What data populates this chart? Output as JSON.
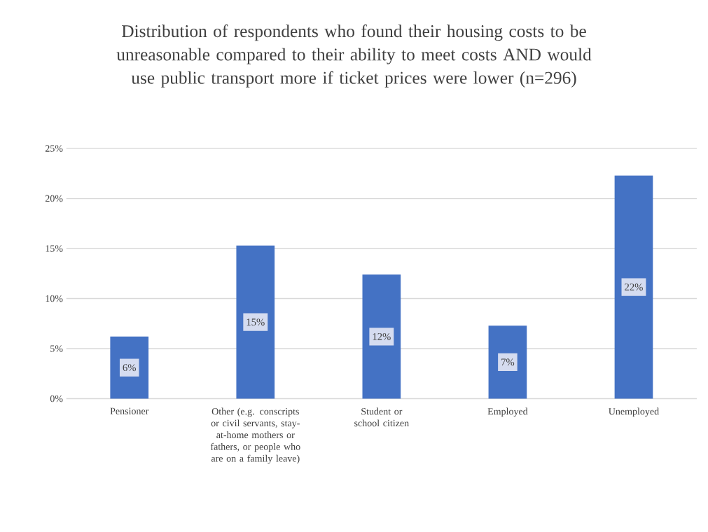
{
  "chart_data": {
    "type": "bar",
    "title": "Distribution of respondents who found their housing costs to be unreasonable compared to their ability to meet costs AND would use public transport more if ticket prices were lower (n=296)",
    "categories": [
      "Pensioner",
      "Other (e.g. conscripts or civil servants, stay-at-home mothers or fathers, or people who are on a family leave)",
      "Student or school citizen",
      "Employed",
      "Unemployed"
    ],
    "values": [
      6.2,
      15.3,
      12.4,
      7.3,
      22.3
    ],
    "value_labels": [
      "6%",
      "15%",
      "12%",
      "7%",
      "22%"
    ],
    "color": "#4472c4",
    "ylim": [
      0,
      25
    ],
    "yticks": [
      {
        "value": 0,
        "label": "0%"
      },
      {
        "value": 5,
        "label": "5%"
      },
      {
        "value": 10,
        "label": "10%"
      },
      {
        "value": 15,
        "label": "15%"
      },
      {
        "value": 20,
        "label": "20%"
      },
      {
        "value": 25,
        "label": "25%"
      }
    ],
    "grid": "y"
  }
}
